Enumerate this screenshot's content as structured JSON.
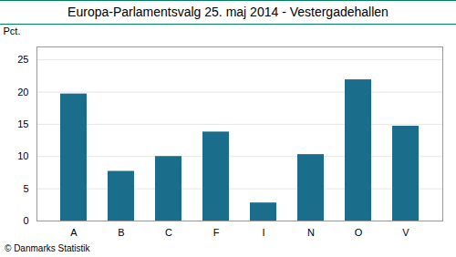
{
  "chart_data": {
    "type": "bar",
    "title": "Europa-Parlamentsvalg 25. maj 2014 - Vestergadehallen",
    "categories": [
      "A",
      "B",
      "C",
      "F",
      "I",
      "N",
      "O",
      "V"
    ],
    "values": [
      19.7,
      7.7,
      10.0,
      13.8,
      2.8,
      10.3,
      21.9,
      14.7
    ],
    "color": "#1b6d8c",
    "ylabel": "Pct.",
    "ylim": [
      0,
      27
    ],
    "yticks": [
      0,
      5,
      10,
      15,
      20,
      25
    ],
    "grid": true,
    "caption": "© Danmarks Statistik"
  }
}
